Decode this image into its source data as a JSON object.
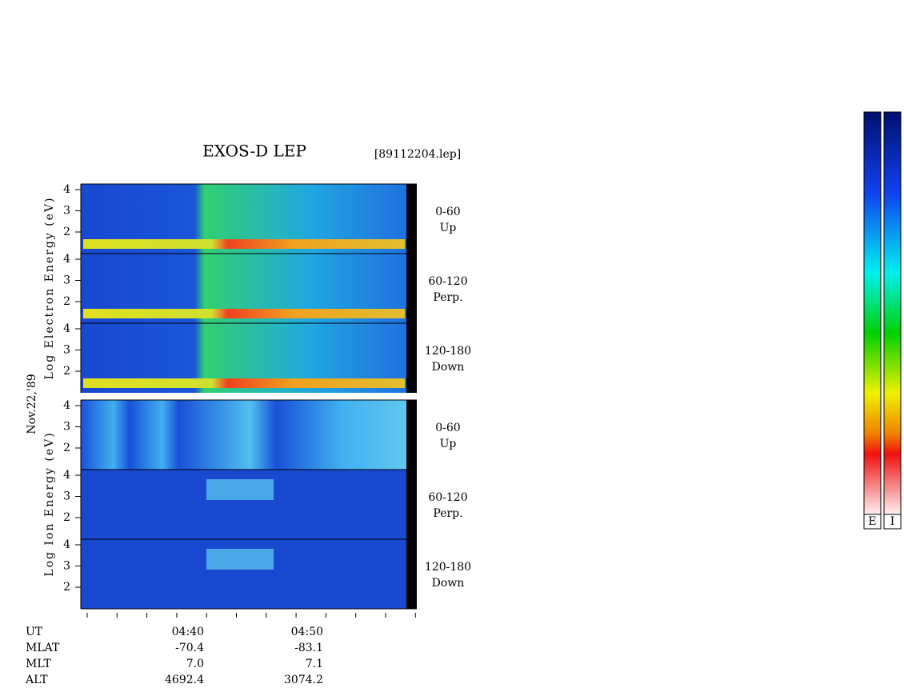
{
  "header": {
    "title": "EXOS-D LEP",
    "file": "[89112204.lep]"
  },
  "axis_labels": {
    "date": "Nov.22,'89",
    "electron": "Log Electron Energy (eV)",
    "ion": "Log Ion Energy (eV)"
  },
  "panels": [
    {
      "ticks": [
        "4",
        "3",
        "2"
      ],
      "pitch": "0-60",
      "direction": "Up"
    },
    {
      "ticks": [
        "4",
        "3",
        "2"
      ],
      "pitch": "60-120",
      "direction": "Perp."
    },
    {
      "ticks": [
        "4",
        "3",
        "2"
      ],
      "pitch": "120-180",
      "direction": "Down"
    },
    {
      "ticks": [
        "4",
        "3",
        "2"
      ],
      "pitch": "0-60",
      "direction": "Up"
    },
    {
      "ticks": [
        "4",
        "3",
        "2"
      ],
      "pitch": "60-120",
      "direction": "Perp."
    },
    {
      "ticks": [
        "4",
        "3",
        "2"
      ],
      "pitch": "120-180",
      "direction": "Down"
    }
  ],
  "footer": {
    "rows": [
      [
        "UT",
        "04:40",
        "04:50"
      ],
      [
        "MLAT",
        "-70.4",
        "-83.1"
      ],
      [
        "MLT",
        "7.0",
        "7.1"
      ],
      [
        "ALT",
        "4692.4",
        "3074.2"
      ]
    ]
  },
  "colorbars": [
    "E",
    "I"
  ]
}
